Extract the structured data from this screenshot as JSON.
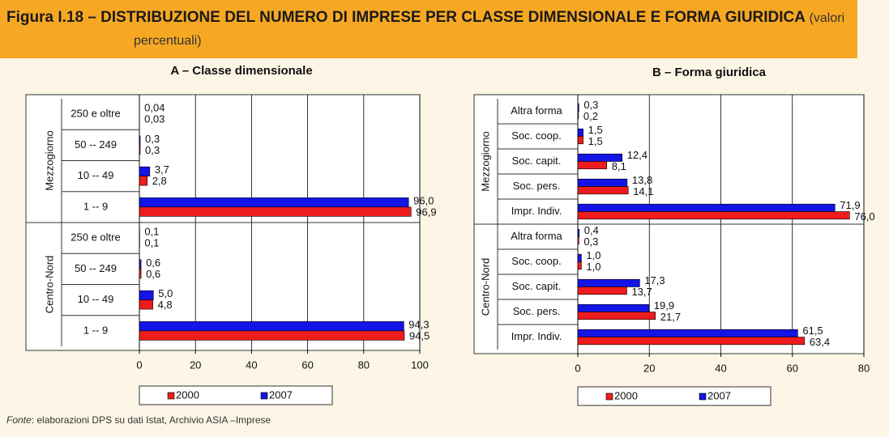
{
  "header": {
    "title": "Figura I.18 – DISTRIBUZIONE DEL NUMERO DI IMPRESE PER CLASSE DIMENSIONALE E FORMA GIURIDICA",
    "subtitle": "(valori percentuali)"
  },
  "chart_data": [
    {
      "type": "bar",
      "orientation": "horizontal",
      "title": "A – Classe dimensionale",
      "groups": [
        {
          "name": "Mezzogiorno",
          "categories": [
            "250 e oltre",
            "50 -- 249",
            "10 -- 49",
            "1 -- 9"
          ]
        },
        {
          "name": "Centro-Nord",
          "categories": [
            "250 e oltre",
            "50 -- 249",
            "10 -- 49",
            "1 -- 9"
          ]
        }
      ],
      "series": [
        {
          "name": "2000",
          "color": "#ee1c1c",
          "values": [
            [
              0.03,
              0.3,
              2.8,
              96.9
            ],
            [
              0.1,
              0.6,
              4.8,
              94.5
            ]
          ],
          "value_labels": [
            [
              "0,03",
              "0,3",
              "2,8",
              "96,9"
            ],
            [
              "0,1",
              "0,6",
              "4,8",
              "94,5"
            ]
          ]
        },
        {
          "name": "2007",
          "color": "#1414e6",
          "values": [
            [
              0.04,
              0.3,
              3.7,
              96.0
            ],
            [
              0.1,
              0.6,
              5.0,
              94.3
            ]
          ],
          "value_labels": [
            [
              "0,04",
              "0,3",
              "3,7",
              "96,0"
            ],
            [
              "0,1",
              "0,6",
              "5,0",
              "94,3"
            ]
          ]
        }
      ],
      "xlim": [
        0,
        100
      ],
      "xticks": [
        0,
        20,
        40,
        60,
        80,
        100
      ],
      "grid": true,
      "legend": "bottom"
    },
    {
      "type": "bar",
      "orientation": "horizontal",
      "title": "B – Forma giuridica",
      "groups": [
        {
          "name": "Mezzogiorno",
          "categories": [
            "Altra forma",
            "Soc. coop.",
            "Soc. capit.",
            "Soc. pers.",
            "Impr. Indiv."
          ]
        },
        {
          "name": "Centro-Nord",
          "categories": [
            "Altra forma",
            "Soc. coop.",
            "Soc. capit.",
            "Soc. pers.",
            "Impr. Indiv."
          ]
        }
      ],
      "series": [
        {
          "name": "2000",
          "color": "#ee1c1c",
          "values": [
            [
              0.2,
              1.5,
              8.1,
              14.1,
              76.0
            ],
            [
              0.3,
              1.0,
              13.7,
              21.7,
              63.4
            ]
          ],
          "value_labels": [
            [
              "0,2",
              "1,5",
              "8,1",
              "14,1",
              "76,0"
            ],
            [
              "0,3",
              "1,0",
              "13,7",
              "21,7",
              "63,4"
            ]
          ]
        },
        {
          "name": "2007",
          "color": "#1414e6",
          "values": [
            [
              0.3,
              1.5,
              12.4,
              13.8,
              71.9
            ],
            [
              0.4,
              1.0,
              17.3,
              19.9,
              61.5
            ]
          ],
          "value_labels": [
            [
              "0,3",
              "1,5",
              "12,4",
              "13,8",
              "71,9"
            ],
            [
              "0,4",
              "1,0",
              "17,3",
              "19,9",
              "61,5"
            ]
          ]
        }
      ],
      "xlim": [
        0,
        80
      ],
      "xticks": [
        0,
        20,
        40,
        60,
        80
      ],
      "grid": true,
      "legend": "bottom"
    }
  ],
  "footer": {
    "source_label": "Fonte",
    "source_text": ": elaborazioni DPS su dati Istat, Archivio ASIA –Imprese"
  }
}
